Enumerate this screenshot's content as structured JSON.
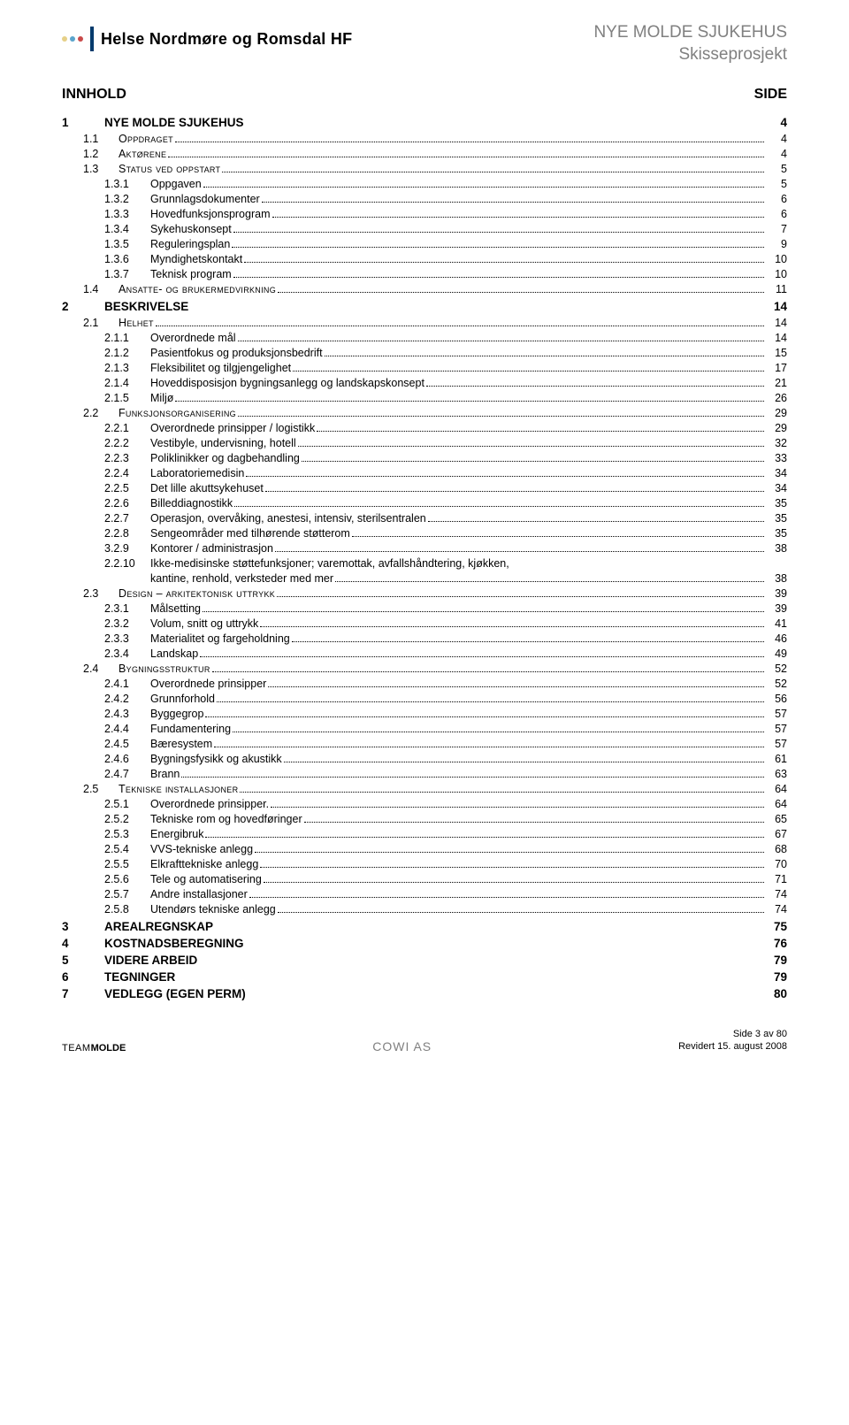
{
  "header": {
    "title_line1": "NYE MOLDE SJUKEHUS",
    "title_line2": "Skisseprosjekt",
    "org_name": "Helse Nordmøre og Romsdal HF"
  },
  "logo_colors": {
    "dot1": "#e6d088",
    "dot2": "#5aa4cc",
    "dot3": "#c94a4a",
    "bar": "#003a6c"
  },
  "content": {
    "heading_left": "INNHOLD",
    "heading_right": "SIDE"
  },
  "toc": [
    {
      "level": 1,
      "num": "1",
      "title": "NYE MOLDE SJUKEHUS",
      "page": "4"
    },
    {
      "level": 2,
      "num": "1.1",
      "title": "Oppdraget",
      "page": "4"
    },
    {
      "level": 2,
      "num": "1.2",
      "title": "Aktørene",
      "page": "4"
    },
    {
      "level": 2,
      "num": "1.3",
      "title": "Status ved oppstart",
      "page": "5"
    },
    {
      "level": 3,
      "num": "1.3.1",
      "title": "Oppgaven",
      "page": "5"
    },
    {
      "level": 3,
      "num": "1.3.2",
      "title": "Grunnlagsdokumenter",
      "page": "6"
    },
    {
      "level": 3,
      "num": "1.3.3",
      "title": "Hovedfunksjonsprogram",
      "page": "6"
    },
    {
      "level": 3,
      "num": "1.3.4",
      "title": "Sykehuskonsept",
      "page": "7"
    },
    {
      "level": 3,
      "num": "1.3.5",
      "title": "Reguleringsplan",
      "page": "9"
    },
    {
      "level": 3,
      "num": "1.3.6",
      "title": "Myndighetskontakt",
      "page": "10"
    },
    {
      "level": 3,
      "num": "1.3.7",
      "title": "Teknisk program",
      "page": "10"
    },
    {
      "level": 2,
      "num": "1.4",
      "title": "Ansatte- og brukermedvirkning",
      "page": "11"
    },
    {
      "level": 1,
      "num": "2",
      "title": "BESKRIVELSE",
      "page": "14"
    },
    {
      "level": 2,
      "num": "2.1",
      "title": "Helhet",
      "page": "14"
    },
    {
      "level": 3,
      "num": "2.1.1",
      "title": "Overordnede mål",
      "page": "14"
    },
    {
      "level": 3,
      "num": "2.1.2",
      "title": "Pasientfokus og produksjonsbedrift",
      "page": "15"
    },
    {
      "level": 3,
      "num": "2.1.3",
      "title": "Fleksibilitet og tilgjengelighet",
      "page": "17"
    },
    {
      "level": 3,
      "num": "2.1.4",
      "title": "Hoveddisposisjon bygningsanlegg og landskapskonsept",
      "page": "21"
    },
    {
      "level": 3,
      "num": "2.1.5",
      "title": "Miljø",
      "page": "26"
    },
    {
      "level": 2,
      "num": "2.2",
      "title": "Funksjonsorganisering",
      "page": "29"
    },
    {
      "level": 3,
      "num": "2.2.1",
      "title": "Overordnede prinsipper / logistikk",
      "page": "29"
    },
    {
      "level": 3,
      "num": "2.2.2",
      "title": "Vestibyle, undervisning, hotell",
      "page": "32"
    },
    {
      "level": 3,
      "num": "2.2.3",
      "title": "Poliklinikker og dagbehandling",
      "page": "33"
    },
    {
      "level": 3,
      "num": "2.2.4",
      "title": "Laboratoriemedisin",
      "page": "34"
    },
    {
      "level": 3,
      "num": "2.2.5",
      "title": "Det lille akuttsykehuset",
      "page": "34"
    },
    {
      "level": 3,
      "num": "2.2.6",
      "title": "Billeddiagnostikk",
      "page": "35"
    },
    {
      "level": 3,
      "num": "2.2.7",
      "title": "Operasjon, overvåking, anestesi, intensiv, sterilsentralen",
      "page": "35"
    },
    {
      "level": 3,
      "num": "2.2.8",
      "title": "Sengeområder med tilhørende støtterom",
      "page": "35"
    },
    {
      "level": 3,
      "num": "3.2.9",
      "title": "Kontorer / administrasjon",
      "page": "38"
    },
    {
      "level": 3,
      "num": "2.2.10",
      "title": "Ikke-medisinske støttefunksjoner; varemottak, avfallshåndtering, kjøkken,",
      "title_line2": "kantine, renhold, verksteder med mer",
      "page": "38",
      "multiline": true
    },
    {
      "level": 2,
      "num": "2.3",
      "title": "Design – arkitektonisk uttrykk",
      "page": "39"
    },
    {
      "level": 3,
      "num": "2.3.1",
      "title": "Målsetting",
      "page": "39"
    },
    {
      "level": 3,
      "num": "2.3.2",
      "title": "Volum, snitt og uttrykk",
      "page": "41"
    },
    {
      "level": 3,
      "num": "2.3.3",
      "title": "Materialitet og fargeholdning",
      "page": "46"
    },
    {
      "level": 3,
      "num": "2.3.4",
      "title": "Landskap",
      "page": "49"
    },
    {
      "level": 2,
      "num": "2.4",
      "title": "Bygningsstruktur",
      "page": "52"
    },
    {
      "level": 3,
      "num": "2.4.1",
      "title": "Overordnede prinsipper",
      "page": "52"
    },
    {
      "level": 3,
      "num": "2.4.2",
      "title": "Grunnforhold",
      "page": "56"
    },
    {
      "level": 3,
      "num": "2.4.3",
      "title": "Byggegrop",
      "page": "57"
    },
    {
      "level": 3,
      "num": "2.4.4",
      "title": "Fundamentering",
      "page": "57"
    },
    {
      "level": 3,
      "num": "2.4.5",
      "title": "Bæresystem",
      "page": "57"
    },
    {
      "level": 3,
      "num": "2.4.6",
      "title": "Bygningsfysikk og akustikk",
      "page": "61"
    },
    {
      "level": 3,
      "num": "2.4.7",
      "title": "Brann",
      "page": "63"
    },
    {
      "level": 2,
      "num": "2.5",
      "title": "Tekniske installasjoner",
      "page": "64"
    },
    {
      "level": 3,
      "num": "2.5.1",
      "title": "Overordnede prinsipper.",
      "page": "64"
    },
    {
      "level": 3,
      "num": "2.5.2",
      "title": "Tekniske rom og hovedføringer",
      "page": "65"
    },
    {
      "level": 3,
      "num": "2.5.3",
      "title": "Energibruk",
      "page": "67"
    },
    {
      "level": 3,
      "num": "2.5.4",
      "title": "VVS-tekniske anlegg",
      "page": "68"
    },
    {
      "level": 3,
      "num": "2.5.5",
      "title": "Elkrafttekniske anlegg",
      "page": "70"
    },
    {
      "level": 3,
      "num": "2.5.6",
      "title": "Tele og automatisering",
      "page": "71"
    },
    {
      "level": 3,
      "num": "2.5.7",
      "title": "Andre installasjoner",
      "page": "74"
    },
    {
      "level": 3,
      "num": "2.5.8",
      "title": "Utendørs tekniske anlegg",
      "page": "74"
    },
    {
      "level": 1,
      "num": "3",
      "title": "AREALREGNSKAP",
      "page": "75"
    },
    {
      "level": 1,
      "num": "4",
      "title": "KOSTNADSBEREGNING",
      "page": "76"
    },
    {
      "level": 1,
      "num": "5",
      "title": "VIDERE ARBEID",
      "page": "79"
    },
    {
      "level": 1,
      "num": "6",
      "title": "TEGNINGER",
      "page": "79"
    },
    {
      "level": 1,
      "num": "7",
      "title": "VEDLEGG (EGEN PERM)",
      "page": "80"
    }
  ],
  "footer": {
    "left_team": "TEAM",
    "left_bold": "MOLDE",
    "center": "COWI AS",
    "right_line1": "Side 3 av 80",
    "right_line2": "Revidert 15. august 2008"
  }
}
